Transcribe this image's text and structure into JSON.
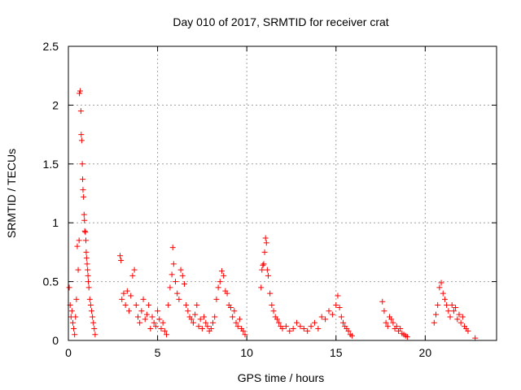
{
  "chart_data": {
    "type": "scatter",
    "title": "Day 010 of 2017, SRMTID for receiver crat",
    "xlabel": "GPS time / hours",
    "ylabel": "SRMTID / TECUs",
    "xlim": [
      0,
      24
    ],
    "ylim": [
      0,
      2.5
    ],
    "xticks": [
      0,
      5,
      10,
      15,
      20
    ],
    "yticks": [
      0,
      0.5,
      1,
      1.5,
      2,
      2.5
    ],
    "xtick_labels": [
      "0",
      "5",
      "10",
      "15",
      "20"
    ],
    "ytick_labels": [
      "0",
      "0.5",
      "1",
      "1.5",
      "2",
      "2.5"
    ],
    "grid": true,
    "marker": "+",
    "color": "#ff0000",
    "series": [
      {
        "name": "SRMTID",
        "x": [
          0.05,
          0.1,
          0.15,
          0.2,
          0.25,
          0.3,
          0.35,
          0.4,
          0.45,
          0.5,
          0.55,
          0.6,
          0.62,
          0.66,
          0.7,
          0.72,
          0.75,
          0.78,
          0.8,
          0.82,
          0.85,
          0.88,
          0.9,
          0.92,
          0.95,
          0.98,
          1.0,
          1.02,
          1.05,
          1.08,
          1.1,
          1.12,
          1.15,
          1.2,
          1.25,
          1.3,
          1.35,
          1.4,
          1.45,
          1.5,
          2.9,
          2.95,
          3.0,
          3.1,
          3.2,
          3.3,
          3.4,
          3.5,
          3.6,
          3.7,
          3.8,
          3.9,
          4.0,
          4.1,
          4.2,
          4.3,
          4.4,
          4.5,
          4.6,
          4.7,
          4.8,
          4.9,
          5.0,
          5.1,
          5.2,
          5.3,
          5.4,
          5.5,
          5.6,
          5.7,
          5.8,
          5.85,
          5.9,
          6.0,
          6.1,
          6.2,
          6.3,
          6.4,
          6.5,
          6.6,
          6.7,
          6.8,
          6.9,
          7.0,
          7.1,
          7.2,
          7.3,
          7.4,
          7.5,
          7.6,
          7.7,
          7.8,
          7.9,
          8.0,
          8.1,
          8.2,
          8.3,
          8.4,
          8.5,
          8.6,
          8.7,
          8.8,
          8.9,
          9.0,
          9.1,
          9.2,
          9.3,
          9.4,
          9.5,
          9.6,
          9.7,
          9.8,
          9.9,
          10.8,
          10.85,
          10.9,
          10.95,
          11.0,
          11.05,
          11.1,
          11.15,
          11.2,
          11.3,
          11.4,
          11.5,
          11.6,
          11.7,
          11.8,
          11.9,
          12.0,
          12.2,
          12.4,
          12.6,
          12.8,
          13.0,
          13.2,
          13.4,
          13.6,
          13.8,
          14.0,
          14.2,
          14.4,
          14.6,
          14.8,
          15.0,
          15.1,
          15.2,
          15.3,
          15.4,
          15.5,
          15.6,
          15.7,
          15.8,
          15.9,
          17.6,
          17.7,
          17.8,
          17.9,
          18.0,
          18.1,
          18.2,
          18.3,
          18.4,
          18.5,
          18.6,
          18.7,
          18.8,
          18.9,
          19.0,
          20.5,
          20.6,
          20.7,
          20.8,
          20.9,
          21.0,
          21.1,
          21.2,
          21.3,
          21.4,
          21.5,
          21.6,
          21.7,
          21.8,
          21.9,
          22.0,
          22.1,
          22.2,
          22.3,
          22.4,
          22.8
        ],
        "y": [
          0.45,
          0.3,
          0.2,
          0.25,
          0.15,
          0.1,
          0.05,
          0.2,
          0.35,
          0.8,
          0.6,
          0.85,
          2.1,
          2.12,
          1.95,
          1.75,
          1.7,
          1.5,
          1.37,
          1.28,
          1.22,
          1.07,
          1.02,
          0.93,
          0.92,
          0.85,
          0.75,
          0.7,
          0.65,
          0.6,
          0.55,
          0.5,
          0.45,
          0.35,
          0.3,
          0.25,
          0.2,
          0.15,
          0.1,
          0.05,
          0.72,
          0.68,
          0.35,
          0.4,
          0.3,
          0.42,
          0.25,
          0.38,
          0.55,
          0.6,
          0.3,
          0.2,
          0.15,
          0.25,
          0.35,
          0.18,
          0.22,
          0.3,
          0.1,
          0.2,
          0.15,
          0.12,
          0.25,
          0.18,
          0.1,
          0.15,
          0.08,
          0.05,
          0.3,
          0.45,
          0.56,
          0.79,
          0.65,
          0.5,
          0.4,
          0.35,
          0.6,
          0.55,
          0.48,
          0.3,
          0.25,
          0.2,
          0.18,
          0.15,
          0.22,
          0.3,
          0.12,
          0.18,
          0.1,
          0.2,
          0.15,
          0.12,
          0.08,
          0.1,
          0.15,
          0.2,
          0.35,
          0.45,
          0.5,
          0.59,
          0.55,
          0.42,
          0.4,
          0.3,
          0.28,
          0.2,
          0.25,
          0.15,
          0.12,
          0.18,
          0.1,
          0.08,
          0.05,
          0.45,
          0.6,
          0.64,
          0.65,
          0.75,
          0.87,
          0.83,
          0.6,
          0.55,
          0.4,
          0.3,
          0.25,
          0.2,
          0.18,
          0.15,
          0.12,
          0.1,
          0.12,
          0.08,
          0.1,
          0.15,
          0.12,
          0.1,
          0.08,
          0.12,
          0.15,
          0.1,
          0.2,
          0.18,
          0.25,
          0.22,
          0.3,
          0.38,
          0.28,
          0.2,
          0.15,
          0.12,
          0.1,
          0.08,
          0.05,
          0.04,
          0.33,
          0.25,
          0.15,
          0.12,
          0.2,
          0.18,
          0.15,
          0.1,
          0.12,
          0.08,
          0.1,
          0.06,
          0.05,
          0.04,
          0.03,
          0.15,
          0.22,
          0.3,
          0.45,
          0.49,
          0.4,
          0.35,
          0.3,
          0.25,
          0.2,
          0.3,
          0.25,
          0.28,
          0.18,
          0.22,
          0.15,
          0.2,
          0.12,
          0.1,
          0.08,
          0.02
        ]
      }
    ]
  }
}
